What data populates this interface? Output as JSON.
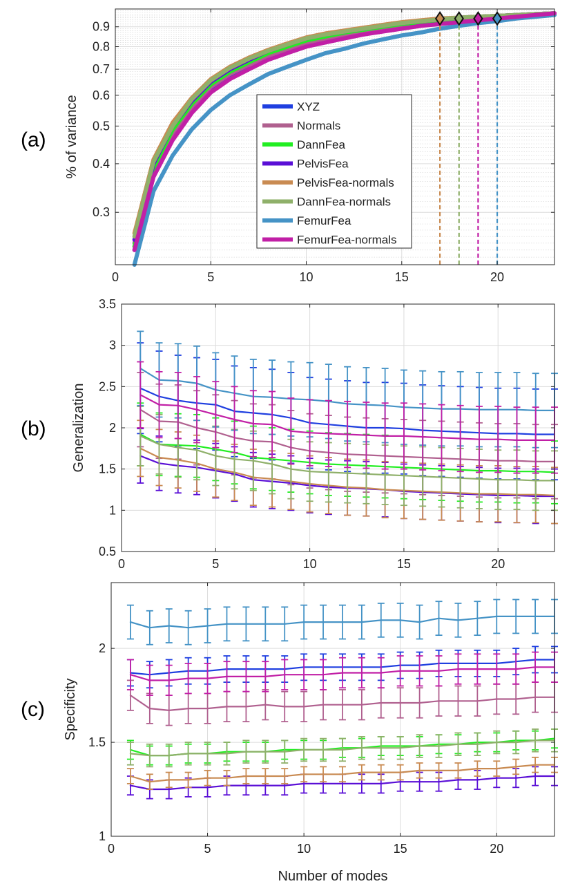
{
  "colors": {
    "XYZ": "#1f3fe0",
    "Normals": "#b0608f",
    "DannFea": "#22ee22",
    "PelvisFea": "#5a0fd6",
    "PelvisFea-normals": "#c98b52",
    "DannFea-normals": "#8fb06a",
    "FemurFea": "#4593c6",
    "FemurFea-normals": "#c11fa6"
  },
  "chart_data": [
    {
      "panel": "(a)",
      "type": "line",
      "xlabel": "",
      "ylabel": "% of variance",
      "yscale": "log",
      "xlim": [
        0,
        23
      ],
      "ylim": [
        0.22,
        1.0
      ],
      "xticks": [
        0,
        5,
        10,
        15,
        20
      ],
      "yticks": [
        0.3,
        0.4,
        0.5,
        0.6,
        0.7,
        0.8,
        0.9
      ],
      "grid": true,
      "legend_position": "middle",
      "x": [
        1,
        2,
        3,
        4,
        5,
        6,
        7,
        8,
        9,
        10,
        11,
        12,
        13,
        14,
        15,
        16,
        17,
        18,
        19,
        20,
        21,
        22,
        23
      ],
      "series": [
        {
          "name": "XYZ",
          "values": [
            0.24,
            0.38,
            0.47,
            0.55,
            0.62,
            0.67,
            0.72,
            0.76,
            0.79,
            0.82,
            0.84,
            0.86,
            0.88,
            0.895,
            0.91,
            0.92,
            0.93,
            0.94,
            0.95,
            0.96,
            0.965,
            0.97,
            0.975
          ]
        },
        {
          "name": "Normals",
          "values": [
            0.25,
            0.39,
            0.48,
            0.56,
            0.63,
            0.68,
            0.72,
            0.76,
            0.79,
            0.82,
            0.84,
            0.86,
            0.88,
            0.895,
            0.91,
            0.92,
            0.93,
            0.94,
            0.95,
            0.96,
            0.965,
            0.97,
            0.975
          ]
        },
        {
          "name": "DannFea",
          "values": [
            0.245,
            0.39,
            0.49,
            0.57,
            0.64,
            0.69,
            0.73,
            0.77,
            0.8,
            0.83,
            0.85,
            0.87,
            0.885,
            0.9,
            0.915,
            0.925,
            0.935,
            0.945,
            0.955,
            0.96,
            0.965,
            0.97,
            0.975
          ]
        },
        {
          "name": "PelvisFea",
          "values": [
            0.255,
            0.4,
            0.5,
            0.58,
            0.65,
            0.7,
            0.74,
            0.78,
            0.81,
            0.84,
            0.86,
            0.875,
            0.89,
            0.905,
            0.92,
            0.93,
            0.94,
            0.95,
            0.955,
            0.96,
            0.965,
            0.97,
            0.975
          ]
        },
        {
          "name": "PelvisFea-normals",
          "values": [
            0.265,
            0.41,
            0.51,
            0.59,
            0.66,
            0.71,
            0.75,
            0.785,
            0.815,
            0.845,
            0.865,
            0.88,
            0.895,
            0.91,
            0.925,
            0.935,
            0.945,
            0.95,
            0.955,
            0.96,
            0.965,
            0.97,
            0.975
          ]
        },
        {
          "name": "DannFea-normals",
          "values": [
            0.26,
            0.405,
            0.5,
            0.585,
            0.655,
            0.705,
            0.745,
            0.78,
            0.81,
            0.84,
            0.86,
            0.875,
            0.89,
            0.905,
            0.92,
            0.93,
            0.94,
            0.95,
            0.955,
            0.96,
            0.965,
            0.97,
            0.975
          ]
        },
        {
          "name": "FemurFea",
          "values": [
            0.22,
            0.34,
            0.42,
            0.49,
            0.55,
            0.6,
            0.64,
            0.68,
            0.71,
            0.74,
            0.77,
            0.79,
            0.815,
            0.835,
            0.855,
            0.87,
            0.89,
            0.905,
            0.92,
            0.93,
            0.945,
            0.955,
            0.965
          ]
        },
        {
          "name": "FemurFea-normals",
          "values": [
            0.24,
            0.37,
            0.46,
            0.54,
            0.61,
            0.66,
            0.7,
            0.74,
            0.77,
            0.8,
            0.82,
            0.84,
            0.86,
            0.875,
            0.89,
            0.905,
            0.915,
            0.925,
            0.935,
            0.945,
            0.955,
            0.965,
            0.975
          ]
        }
      ],
      "markers": [
        {
          "name": "PelvisFea-normals",
          "x": 17,
          "y": 0.945
        },
        {
          "name": "DannFea-normals",
          "x": 18,
          "y": 0.945
        },
        {
          "name": "FemurFea-normals",
          "x": 19,
          "y": 0.945
        },
        {
          "name": "FemurFea",
          "x": 20,
          "y": 0.945
        }
      ]
    },
    {
      "panel": "(b)",
      "type": "line",
      "xlabel": "",
      "ylabel": "Generalization",
      "xlim": [
        0,
        23
      ],
      "ylim": [
        0.5,
        3.5
      ],
      "xticks": [
        0,
        5,
        10,
        15,
        20
      ],
      "yticks": [
        0.5,
        1,
        1.5,
        2,
        2.5,
        3,
        3.5
      ],
      "grid": true,
      "x": [
        1,
        2,
        3,
        4,
        5,
        6,
        7,
        8,
        9,
        10,
        11,
        12,
        13,
        14,
        15,
        16,
        17,
        18,
        19,
        20,
        21,
        22,
        23
      ],
      "series": [
        {
          "name": "XYZ",
          "values": [
            2.48,
            2.38,
            2.33,
            2.3,
            2.28,
            2.2,
            2.18,
            2.16,
            2.12,
            2.06,
            2.04,
            2.02,
            2.0,
            2.0,
            1.99,
            1.97,
            1.96,
            1.95,
            1.94,
            1.93,
            1.93,
            1.92,
            1.92
          ],
          "err": 0.55
        },
        {
          "name": "Normals",
          "values": [
            2.22,
            2.08,
            2.07,
            2.0,
            1.95,
            1.88,
            1.84,
            1.83,
            1.76,
            1.72,
            1.7,
            1.68,
            1.67,
            1.66,
            1.65,
            1.64,
            1.63,
            1.62,
            1.61,
            1.6,
            1.6,
            1.59,
            1.59
          ],
          "err": 0.45
        },
        {
          "name": "DannFea",
          "values": [
            1.92,
            1.8,
            1.79,
            1.78,
            1.74,
            1.7,
            1.64,
            1.62,
            1.6,
            1.58,
            1.56,
            1.55,
            1.54,
            1.53,
            1.52,
            1.51,
            1.5,
            1.49,
            1.48,
            1.48,
            1.47,
            1.47,
            1.46
          ],
          "err": 0.38
        },
        {
          "name": "PelvisFea",
          "values": [
            1.66,
            1.57,
            1.54,
            1.52,
            1.48,
            1.44,
            1.37,
            1.35,
            1.33,
            1.3,
            1.28,
            1.27,
            1.26,
            1.25,
            1.23,
            1.22,
            1.21,
            1.2,
            1.19,
            1.18,
            1.18,
            1.17,
            1.17
          ],
          "err": 0.33
        },
        {
          "name": "PelvisFea-normals",
          "values": [
            1.75,
            1.64,
            1.61,
            1.57,
            1.5,
            1.46,
            1.4,
            1.38,
            1.35,
            1.32,
            1.3,
            1.28,
            1.27,
            1.25,
            1.24,
            1.23,
            1.22,
            1.21,
            1.2,
            1.2,
            1.19,
            1.19,
            1.18
          ],
          "err": 0.34
        },
        {
          "name": "DannFea-normals",
          "values": [
            1.9,
            1.8,
            1.76,
            1.73,
            1.66,
            1.62,
            1.6,
            1.56,
            1.5,
            1.47,
            1.46,
            1.45,
            1.44,
            1.43,
            1.42,
            1.41,
            1.4,
            1.39,
            1.38,
            1.37,
            1.37,
            1.36,
            1.36
          ],
          "err": 0.36
        },
        {
          "name": "FemurFea",
          "values": [
            2.72,
            2.58,
            2.57,
            2.54,
            2.46,
            2.42,
            2.38,
            2.37,
            2.35,
            2.34,
            2.32,
            2.29,
            2.28,
            2.27,
            2.25,
            2.24,
            2.23,
            2.23,
            2.22,
            2.22,
            2.22,
            2.21,
            2.21
          ],
          "err": 0.45
        },
        {
          "name": "FemurFea-normals",
          "values": [
            2.4,
            2.28,
            2.27,
            2.22,
            2.16,
            2.1,
            2.05,
            2.04,
            1.96,
            1.94,
            1.93,
            1.92,
            1.91,
            1.9,
            1.9,
            1.89,
            1.88,
            1.87,
            1.86,
            1.86,
            1.85,
            1.85,
            1.85
          ],
          "err": 0.4
        }
      ]
    },
    {
      "panel": "(c)",
      "type": "line",
      "xlabel": "Number of modes",
      "ylabel": "Specificity",
      "xlim": [
        0,
        23
      ],
      "ylim": [
        1.0,
        2.35
      ],
      "xticks": [
        0,
        5,
        10,
        15,
        20
      ],
      "yticks": [
        1,
        1.5,
        2
      ],
      "grid": true,
      "x": [
        1,
        2,
        3,
        4,
        5,
        6,
        7,
        8,
        9,
        10,
        11,
        12,
        13,
        14,
        15,
        16,
        17,
        18,
        19,
        20,
        21,
        22,
        23
      ],
      "series": [
        {
          "name": "XYZ",
          "values": [
            1.87,
            1.86,
            1.87,
            1.88,
            1.88,
            1.89,
            1.89,
            1.89,
            1.89,
            1.9,
            1.9,
            1.9,
            1.9,
            1.9,
            1.91,
            1.91,
            1.92,
            1.92,
            1.92,
            1.92,
            1.93,
            1.94,
            1.94
          ],
          "err": 0.07
        },
        {
          "name": "Normals",
          "values": [
            1.75,
            1.68,
            1.67,
            1.68,
            1.68,
            1.69,
            1.69,
            1.7,
            1.69,
            1.69,
            1.7,
            1.7,
            1.7,
            1.71,
            1.71,
            1.71,
            1.72,
            1.72,
            1.72,
            1.73,
            1.73,
            1.74,
            1.74
          ],
          "err": 0.08
        },
        {
          "name": "DannFea",
          "values": [
            1.46,
            1.43,
            1.43,
            1.44,
            1.44,
            1.45,
            1.45,
            1.45,
            1.46,
            1.46,
            1.46,
            1.47,
            1.47,
            1.48,
            1.48,
            1.48,
            1.49,
            1.49,
            1.5,
            1.5,
            1.51,
            1.51,
            1.52
          ],
          "err": 0.05
        },
        {
          "name": "PelvisFea",
          "values": [
            1.27,
            1.25,
            1.25,
            1.26,
            1.26,
            1.27,
            1.27,
            1.27,
            1.27,
            1.28,
            1.28,
            1.28,
            1.28,
            1.28,
            1.29,
            1.29,
            1.29,
            1.3,
            1.3,
            1.31,
            1.31,
            1.32,
            1.32
          ],
          "err": 0.05
        },
        {
          "name": "PelvisFea-normals",
          "values": [
            1.32,
            1.29,
            1.3,
            1.3,
            1.31,
            1.31,
            1.32,
            1.32,
            1.32,
            1.33,
            1.33,
            1.33,
            1.34,
            1.34,
            1.34,
            1.35,
            1.35,
            1.35,
            1.36,
            1.36,
            1.37,
            1.38,
            1.38
          ],
          "err": 0.04
        },
        {
          "name": "DannFea-normals",
          "values": [
            1.44,
            1.43,
            1.43,
            1.44,
            1.44,
            1.44,
            1.45,
            1.45,
            1.45,
            1.46,
            1.46,
            1.46,
            1.47,
            1.47,
            1.47,
            1.48,
            1.48,
            1.49,
            1.49,
            1.5,
            1.5,
            1.51,
            1.51
          ],
          "err": 0.06
        },
        {
          "name": "FemurFea",
          "values": [
            2.14,
            2.11,
            2.12,
            2.11,
            2.12,
            2.13,
            2.13,
            2.13,
            2.13,
            2.14,
            2.14,
            2.14,
            2.14,
            2.15,
            2.15,
            2.14,
            2.16,
            2.15,
            2.16,
            2.17,
            2.17,
            2.17,
            2.17
          ],
          "err": 0.09
        },
        {
          "name": "FemurFea-normals",
          "values": [
            1.86,
            1.83,
            1.83,
            1.84,
            1.84,
            1.85,
            1.85,
            1.85,
            1.86,
            1.86,
            1.86,
            1.87,
            1.87,
            1.87,
            1.88,
            1.88,
            1.88,
            1.89,
            1.89,
            1.89,
            1.89,
            1.9,
            1.9
          ],
          "err": 0.08
        }
      ]
    }
  ],
  "panel_labels": [
    "(a)",
    "(b)",
    "(c)"
  ]
}
